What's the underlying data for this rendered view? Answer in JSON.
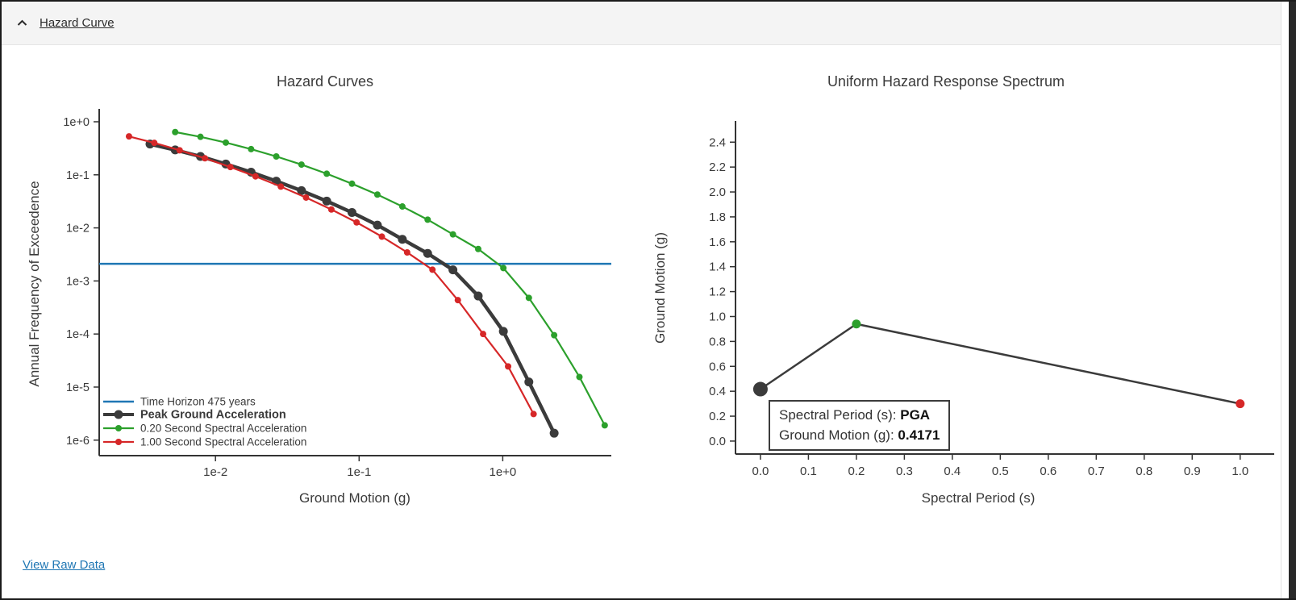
{
  "header": {
    "title": "Hazard Curve",
    "icon": "chevron-up"
  },
  "footer": {
    "view_raw_data": "View Raw Data"
  },
  "colors": {
    "blue": "#1f77b4",
    "green": "#2ca02c",
    "red": "#d62728",
    "dark": "#3b3b3b",
    "link": "#2077b4",
    "axis": "#333333",
    "text": "#3a3a3a"
  },
  "chart_data": [
    {
      "type": "line",
      "title": "Hazard Curves",
      "xlabel": "Ground Motion (g)",
      "ylabel": "Annual Frequency of Exceedence",
      "x_scale": "log",
      "y_scale": "log",
      "xlim": [
        0.00155,
        5.7
      ],
      "ylim": [
        5.1e-07,
        1.75
      ],
      "x_tick_values": [
        0.01,
        0.1,
        1.0
      ],
      "x_tick_labels": [
        "1e-2",
        "1e-1",
        "1e+0"
      ],
      "y_tick_values": [
        1,
        0.1,
        0.01,
        0.001,
        0.0001,
        1e-05,
        1e-06
      ],
      "y_tick_labels": [
        "1e+0",
        "1e-1",
        "1e-2",
        "1e-3",
        "1e-4",
        "1e-5",
        "1e-6"
      ],
      "grid": false,
      "legend_position": "lower-left",
      "time_horizon_years": 475,
      "series": [
        {
          "name": "Time Horizon 475 years",
          "kind": "hline",
          "color": "#1f77b4",
          "y": 0.0021052
        },
        {
          "name": "Peak Ground Acceleration",
          "kind": "line-markers",
          "color": "#3b3b3b",
          "emphasis": true,
          "x": [
            0.0035,
            0.00524,
            0.00786,
            0.0118,
            0.0177,
            0.0265,
            0.0397,
            0.0595,
            0.0892,
            0.134,
            0.2,
            0.3,
            0.45,
            0.675,
            1.01,
            1.52,
            2.28
          ],
          "y": [
            0.38,
            0.295,
            0.222,
            0.16,
            0.112,
            0.076,
            0.0503,
            0.032,
            0.0195,
            0.0113,
            0.0061,
            0.0033,
            0.00162,
            0.00052,
            0.000112,
            1.25e-05,
            1.35e-06
          ]
        },
        {
          "name": "0.20 Second Spectral Acceleration",
          "kind": "line-markers",
          "color": "#2ca02c",
          "emphasis": false,
          "x": [
            0.00524,
            0.00786,
            0.0118,
            0.0177,
            0.0265,
            0.0397,
            0.0595,
            0.0892,
            0.134,
            0.2,
            0.3,
            0.45,
            0.675,
            1.01,
            1.52,
            2.28,
            3.42,
            5.13
          ],
          "y": [
            0.64,
            0.52,
            0.405,
            0.305,
            0.222,
            0.156,
            0.105,
            0.068,
            0.0425,
            0.0253,
            0.0143,
            0.00755,
            0.004,
            0.00175,
            0.00048,
            9.5e-05,
            1.55e-05,
            1.9e-06
          ]
        },
        {
          "name": "1.00 Second Spectral Acceleration",
          "kind": "line-markers",
          "color": "#d62728",
          "emphasis": false,
          "x": [
            0.0025,
            0.00375,
            0.00563,
            0.00844,
            0.0127,
            0.019,
            0.0285,
            0.0427,
            0.0641,
            0.0961,
            0.144,
            0.216,
            0.324,
            0.487,
            0.73,
            1.09,
            1.64
          ],
          "y": [
            0.53,
            0.4,
            0.29,
            0.205,
            0.14,
            0.0935,
            0.06,
            0.0373,
            0.0222,
            0.0127,
            0.00685,
            0.00345,
            0.00163,
            0.000435,
            0.0001,
            2.45e-05,
            3.1e-06
          ]
        }
      ]
    },
    {
      "type": "line",
      "title": "Uniform Hazard Response Spectrum",
      "xlabel": "Spectral Period (s)",
      "ylabel": "Ground Motion (g)",
      "x_scale": "linear",
      "y_scale": "linear",
      "xlim": [
        -0.052,
        1.071
      ],
      "ylim": [
        -0.104,
        2.57
      ],
      "x_tick_values": [
        0,
        0.1,
        0.2,
        0.3,
        0.4,
        0.5,
        0.6,
        0.7,
        0.8,
        0.9,
        1.0
      ],
      "x_tick_labels": [
        "0.0",
        "0.1",
        "0.2",
        "0.3",
        "0.4",
        "0.5",
        "0.6",
        "0.7",
        "0.8",
        "0.9",
        "1.0"
      ],
      "y_tick_values": [
        0,
        0.2,
        0.4,
        0.6,
        0.8,
        1.0,
        1.2,
        1.4,
        1.6,
        1.8,
        2.0,
        2.2,
        2.4
      ],
      "y_tick_labels": [
        "0.0",
        "0.2",
        "0.4",
        "0.6",
        "0.8",
        "1.0",
        "1.2",
        "1.4",
        "1.6",
        "1.8",
        "2.0",
        "2.2",
        "2.4"
      ],
      "grid": false,
      "line_color": "#3b3b3b",
      "points": [
        {
          "period_label": "PGA",
          "x": 0,
          "y": 0.4171,
          "color": "#3b3b3b",
          "highlighted": true
        },
        {
          "period_label": "0.2",
          "x": 0.2,
          "y": 0.94,
          "color": "#2ca02c",
          "highlighted": false
        },
        {
          "period_label": "1.0",
          "x": 1.0,
          "y": 0.3,
          "color": "#d62728",
          "highlighted": false
        }
      ],
      "tooltip": {
        "rows": [
          {
            "label": "Spectral Period (s): ",
            "value": "PGA"
          },
          {
            "label": "Ground Motion (g): ",
            "value": "0.4171"
          }
        ]
      }
    }
  ]
}
